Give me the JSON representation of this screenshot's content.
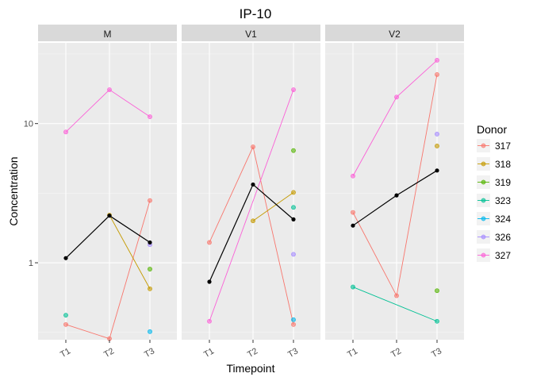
{
  "chart_data": {
    "type": "line",
    "title": "IP-10",
    "xlabel": "Timepoint",
    "ylabel": "Concentration",
    "y_scale": "log10",
    "ylim": [
      0.28,
      38
    ],
    "y_ticks": [
      1,
      10
    ],
    "categories": [
      "T1",
      "T2",
      "T3"
    ],
    "grid": true,
    "legend": {
      "title": "Donor",
      "position": "right"
    },
    "mean_line_color": "#000000",
    "series": [
      {
        "name": "317",
        "color": "#F8766D"
      },
      {
        "name": "318",
        "color": "#C49A00"
      },
      {
        "name": "319",
        "color": "#53B400"
      },
      {
        "name": "323",
        "color": "#00C094"
      },
      {
        "name": "324",
        "color": "#00B6EB"
      },
      {
        "name": "326",
        "color": "#A58AFF"
      },
      {
        "name": "327",
        "color": "#FB61D7"
      }
    ],
    "facets": [
      {
        "label": "M",
        "points": [
          {
            "donor": "317",
            "x": "T1",
            "y": 0.36
          },
          {
            "donor": "317",
            "x": "T2",
            "y": 0.285
          },
          {
            "donor": "317",
            "x": "T3",
            "y": 2.8
          },
          {
            "donor": "318",
            "x": "T2",
            "y": 2.2
          },
          {
            "donor": "318",
            "x": "T3",
            "y": 0.65
          },
          {
            "donor": "319",
            "x": "T3",
            "y": 0.9
          },
          {
            "donor": "323",
            "x": "T1",
            "y": 0.42
          },
          {
            "donor": "324",
            "x": "T3",
            "y": 0.32
          },
          {
            "donor": "326",
            "x": "T3",
            "y": 1.35
          },
          {
            "donor": "327",
            "x": "T1",
            "y": 8.7
          },
          {
            "donor": "327",
            "x": "T2",
            "y": 17.5
          },
          {
            "donor": "327",
            "x": "T3",
            "y": 11.2
          }
        ],
        "lines": [
          {
            "donor": "317",
            "xs": [
              "T1",
              "T2",
              "T3"
            ]
          },
          {
            "donor": "318",
            "xs": [
              "T2",
              "T3"
            ]
          },
          {
            "donor": "327",
            "xs": [
              "T1",
              "T2",
              "T3"
            ]
          }
        ],
        "mean": [
          {
            "x": "T1",
            "y": 1.08
          },
          {
            "x": "T2",
            "y": 2.18
          },
          {
            "x": "T3",
            "y": 1.4
          }
        ]
      },
      {
        "label": "V1",
        "points": [
          {
            "donor": "317",
            "x": "T1",
            "y": 1.4
          },
          {
            "donor": "317",
            "x": "T2",
            "y": 6.8
          },
          {
            "donor": "317",
            "x": "T3",
            "y": 0.36
          },
          {
            "donor": "318",
            "x": "T2",
            "y": 2.0
          },
          {
            "donor": "318",
            "x": "T3",
            "y": 3.2
          },
          {
            "donor": "319",
            "x": "T3",
            "y": 6.4
          },
          {
            "donor": "323",
            "x": "T3",
            "y": 2.5
          },
          {
            "donor": "324",
            "x": "T3",
            "y": 0.39
          },
          {
            "donor": "326",
            "x": "T3",
            "y": 1.15
          },
          {
            "donor": "327",
            "x": "T1",
            "y": 0.38
          },
          {
            "donor": "327",
            "x": "T3",
            "y": 17.5
          }
        ],
        "lines": [
          {
            "donor": "317",
            "xs": [
              "T1",
              "T2",
              "T3"
            ]
          },
          {
            "donor": "318",
            "xs": [
              "T2",
              "T3"
            ]
          },
          {
            "donor": "327",
            "xs": [
              "T1",
              "T3"
            ]
          }
        ],
        "mean": [
          {
            "x": "T1",
            "y": 0.73
          },
          {
            "x": "T2",
            "y": 3.65
          },
          {
            "x": "T3",
            "y": 2.05
          }
        ]
      },
      {
        "label": "V2",
        "points": [
          {
            "donor": "317",
            "x": "T1",
            "y": 2.3
          },
          {
            "donor": "317",
            "x": "T2",
            "y": 0.58
          },
          {
            "donor": "317",
            "x": "T3",
            "y": 22.5
          },
          {
            "donor": "318",
            "x": "T3",
            "y": 6.9
          },
          {
            "donor": "319",
            "x": "T3",
            "y": 0.63
          },
          {
            "donor": "323",
            "x": "T1",
            "y": 0.67
          },
          {
            "donor": "323",
            "x": "T3",
            "y": 0.38
          },
          {
            "donor": "326",
            "x": "T3",
            "y": 8.4
          },
          {
            "donor": "327",
            "x": "T1",
            "y": 4.2
          },
          {
            "donor": "327",
            "x": "T2",
            "y": 15.5
          },
          {
            "donor": "327",
            "x": "T3",
            "y": 28.5
          }
        ],
        "lines": [
          {
            "donor": "317",
            "xs": [
              "T1",
              "T2",
              "T3"
            ]
          },
          {
            "donor": "323",
            "xs": [
              "T1",
              "T3"
            ]
          },
          {
            "donor": "327",
            "xs": [
              "T1",
              "T2",
              "T3"
            ]
          }
        ],
        "mean": [
          {
            "x": "T1",
            "y": 1.85
          },
          {
            "x": "T2",
            "y": 3.05
          },
          {
            "x": "T3",
            "y": 4.6
          }
        ]
      }
    ]
  }
}
